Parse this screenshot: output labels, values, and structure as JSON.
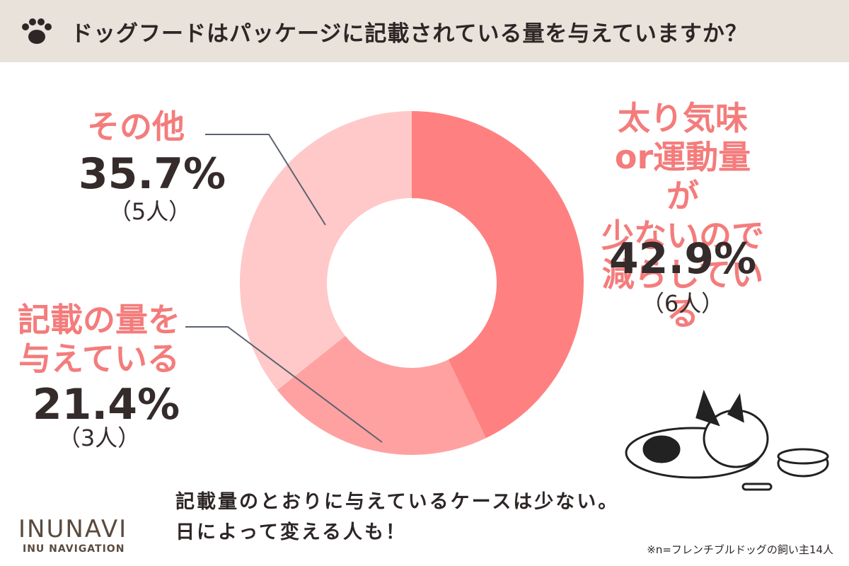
{
  "chart_data": {
    "type": "pie",
    "donut": true,
    "title": "ドッグフードはパッケージに記載されている量を与えていますか？",
    "categories": [
      "太り気味or運動量が\n少ないので\n減らしている",
      "記載の量を\n与えている",
      "その他"
    ],
    "values": [
      42.9,
      21.4,
      35.7
    ],
    "value_labels": [
      "42.9%",
      "21.4%",
      "35.7%"
    ],
    "count_labels": [
      "（6人）",
      "（3人）",
      "（5人）"
    ],
    "colors": [
      "#ff8080",
      "#ffa1a1",
      "#ffc9c9"
    ]
  },
  "conclusion": "記載量のとおりに与えているケースは少ない。\n日によって変える人も！",
  "logo": "INUNAVI",
  "logo_subtitle": "INU NAVIGATION",
  "note": "※n=フレンチブルドッグの飼い主14人"
}
